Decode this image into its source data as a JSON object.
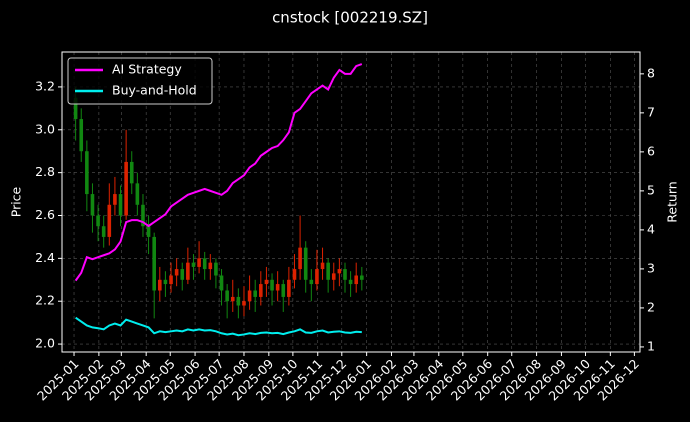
{
  "chart_data": {
    "type": "candlestick",
    "title": "cnstock [002219.SZ]",
    "ylabel": "Price",
    "y2label": "Return",
    "x": [
      "2025-01-03",
      "2025-01-10",
      "2025-01-17",
      "2025-01-24",
      "2025-01-31",
      "2025-02-07",
      "2025-02-14",
      "2025-02-21",
      "2025-02-28",
      "2025-03-07",
      "2025-03-14",
      "2025-03-21",
      "2025-03-28",
      "2025-04-04",
      "2025-04-11",
      "2025-04-18",
      "2025-04-25",
      "2025-05-02",
      "2025-05-09",
      "2025-05-16",
      "2025-05-23",
      "2025-05-30",
      "2025-06-06",
      "2025-06-13",
      "2025-06-20",
      "2025-06-27",
      "2025-07-04",
      "2025-07-11",
      "2025-07-18",
      "2025-07-25",
      "2025-08-01",
      "2025-08-08",
      "2025-08-15",
      "2025-08-22",
      "2025-08-29",
      "2025-09-05",
      "2025-09-12",
      "2025-09-19",
      "2025-09-26",
      "2025-10-03",
      "2025-10-10",
      "2025-10-17",
      "2025-10-24",
      "2025-10-31",
      "2025-11-07",
      "2025-11-14",
      "2025-11-21",
      "2025-11-28",
      "2025-12-05",
      "2025-12-12",
      "2025-12-19",
      "2025-12-26"
    ],
    "open": [
      3.15,
      3.05,
      2.9,
      2.7,
      2.6,
      2.55,
      2.5,
      2.65,
      2.7,
      2.6,
      2.85,
      2.75,
      2.65,
      2.55,
      2.5,
      2.25,
      2.3,
      2.28,
      2.32,
      2.35,
      2.3,
      2.38,
      2.36,
      2.4,
      2.35,
      2.38,
      2.32,
      2.25,
      2.2,
      2.22,
      2.18,
      2.2,
      2.25,
      2.22,
      2.28,
      2.3,
      2.25,
      2.28,
      2.22,
      2.3,
      2.35,
      2.45,
      2.3,
      2.28,
      2.35,
      2.38,
      2.3,
      2.33,
      2.35,
      2.3,
      2.28,
      2.32
    ],
    "high": [
      3.2,
      3.1,
      2.95,
      2.75,
      2.65,
      2.6,
      2.75,
      2.78,
      2.74,
      3.0,
      2.9,
      2.8,
      2.7,
      2.6,
      2.52,
      2.36,
      2.34,
      2.38,
      2.4,
      2.38,
      2.45,
      2.42,
      2.48,
      2.43,
      2.42,
      2.4,
      2.35,
      2.28,
      2.3,
      2.26,
      2.27,
      2.32,
      2.3,
      2.34,
      2.36,
      2.33,
      2.34,
      2.3,
      2.36,
      2.42,
      2.6,
      2.48,
      2.35,
      2.44,
      2.45,
      2.4,
      2.38,
      2.4,
      2.38,
      2.34,
      2.38,
      2.36
    ],
    "low": [
      2.95,
      2.85,
      2.62,
      2.52,
      2.48,
      2.45,
      2.46,
      2.6,
      2.55,
      2.58,
      2.7,
      2.6,
      2.5,
      2.42,
      2.12,
      2.2,
      2.22,
      2.24,
      2.27,
      2.25,
      2.28,
      2.3,
      2.33,
      2.3,
      2.3,
      2.26,
      2.18,
      2.12,
      2.15,
      2.12,
      2.13,
      2.16,
      2.15,
      2.18,
      2.22,
      2.18,
      2.2,
      2.15,
      2.18,
      2.26,
      2.3,
      2.24,
      2.2,
      2.25,
      2.3,
      2.24,
      2.25,
      2.27,
      2.24,
      2.22,
      2.24,
      2.25
    ],
    "close": [
      3.05,
      2.9,
      2.7,
      2.6,
      2.55,
      2.5,
      2.65,
      2.7,
      2.6,
      2.85,
      2.75,
      2.65,
      2.55,
      2.5,
      2.25,
      2.3,
      2.28,
      2.32,
      2.35,
      2.3,
      2.38,
      2.36,
      2.4,
      2.35,
      2.38,
      2.32,
      2.25,
      2.2,
      2.22,
      2.18,
      2.2,
      2.25,
      2.22,
      2.28,
      2.3,
      2.25,
      2.28,
      2.22,
      2.3,
      2.35,
      2.45,
      2.3,
      2.28,
      2.35,
      2.38,
      2.3,
      2.33,
      2.35,
      2.3,
      2.28,
      2.32,
      2.3
    ],
    "up_color": "#dd2200",
    "down_color": "#118811",
    "series": [
      {
        "name": "AI Strategy",
        "color": "#ff00ff",
        "axis": "y2",
        "values": [
          2.7,
          2.9,
          3.3,
          3.25,
          3.3,
          3.35,
          3.4,
          3.5,
          3.7,
          4.2,
          4.25,
          4.25,
          4.2,
          4.1,
          4.2,
          4.3,
          4.4,
          4.6,
          4.7,
          4.8,
          4.9,
          4.95,
          5.0,
          5.05,
          5.0,
          4.95,
          4.9,
          5.0,
          5.2,
          5.3,
          5.4,
          5.6,
          5.7,
          5.9,
          6.0,
          6.1,
          6.15,
          6.3,
          6.5,
          7.0,
          7.1,
          7.3,
          7.5,
          7.6,
          7.7,
          7.6,
          7.9,
          8.1,
          8.0,
          8.0,
          8.2,
          8.25
        ]
      },
      {
        "name": "Buy-and-Hold",
        "color": "#00eeee",
        "axis": "y2",
        "values": [
          1.75,
          1.65,
          1.55,
          1.5,
          1.48,
          1.45,
          1.55,
          1.6,
          1.55,
          1.7,
          1.65,
          1.6,
          1.55,
          1.5,
          1.35,
          1.4,
          1.38,
          1.4,
          1.42,
          1.4,
          1.45,
          1.42,
          1.45,
          1.42,
          1.43,
          1.4,
          1.35,
          1.32,
          1.34,
          1.3,
          1.32,
          1.35,
          1.33,
          1.36,
          1.37,
          1.35,
          1.36,
          1.33,
          1.37,
          1.4,
          1.45,
          1.37,
          1.36,
          1.4,
          1.42,
          1.37,
          1.39,
          1.4,
          1.37,
          1.36,
          1.39,
          1.38
        ]
      }
    ],
    "xlim": [
      "2024-12-17",
      "2026-12-08"
    ],
    "xticks": [
      {
        "value": "2025-01-01",
        "label": "2025-01"
      },
      {
        "value": "2025-02-01",
        "label": "2025-02"
      },
      {
        "value": "2025-03-01",
        "label": "2025-03"
      },
      {
        "value": "2025-04-01",
        "label": "2025-04"
      },
      {
        "value": "2025-05-01",
        "label": "2025-05"
      },
      {
        "value": "2025-06-01",
        "label": "2025-06"
      },
      {
        "value": "2025-07-01",
        "label": "2025-07"
      },
      {
        "value": "2025-08-01",
        "label": "2025-08"
      },
      {
        "value": "2025-09-01",
        "label": "2025-09"
      },
      {
        "value": "2025-10-01",
        "label": "2025-10"
      },
      {
        "value": "2025-11-01",
        "label": "2025-11"
      },
      {
        "value": "2025-12-01",
        "label": "2025-12"
      },
      {
        "value": "2026-01-01",
        "label": "2026-01"
      },
      {
        "value": "2026-02-01",
        "label": "2026-02"
      },
      {
        "value": "2026-03-01",
        "label": "2026-03"
      },
      {
        "value": "2026-04-01",
        "label": "2026-04"
      },
      {
        "value": "2026-05-01",
        "label": "2026-05"
      },
      {
        "value": "2026-06-01",
        "label": "2026-06"
      },
      {
        "value": "2026-07-01",
        "label": "2026-07"
      },
      {
        "value": "2026-08-01",
        "label": "2026-08"
      },
      {
        "value": "2026-09-01",
        "label": "2026-09"
      },
      {
        "value": "2026-10-01",
        "label": "2026-10"
      },
      {
        "value": "2026-11-01",
        "label": "2026-11"
      },
      {
        "value": "2026-12-01",
        "label": "2026-12"
      }
    ],
    "ylim": [
      1.963,
      3.363
    ],
    "yticks": [
      {
        "value": 2,
        "label": "2.0"
      },
      2.2,
      2.4,
      2.6,
      2.8,
      {
        "value": 3,
        "label": "3.0"
      },
      3.2
    ],
    "y2lim": [
      0.87,
      8.56
    ],
    "y2ticks": [
      1,
      2,
      3,
      4,
      5,
      6,
      7,
      8
    ],
    "grid": true,
    "legend": "upper left"
  }
}
